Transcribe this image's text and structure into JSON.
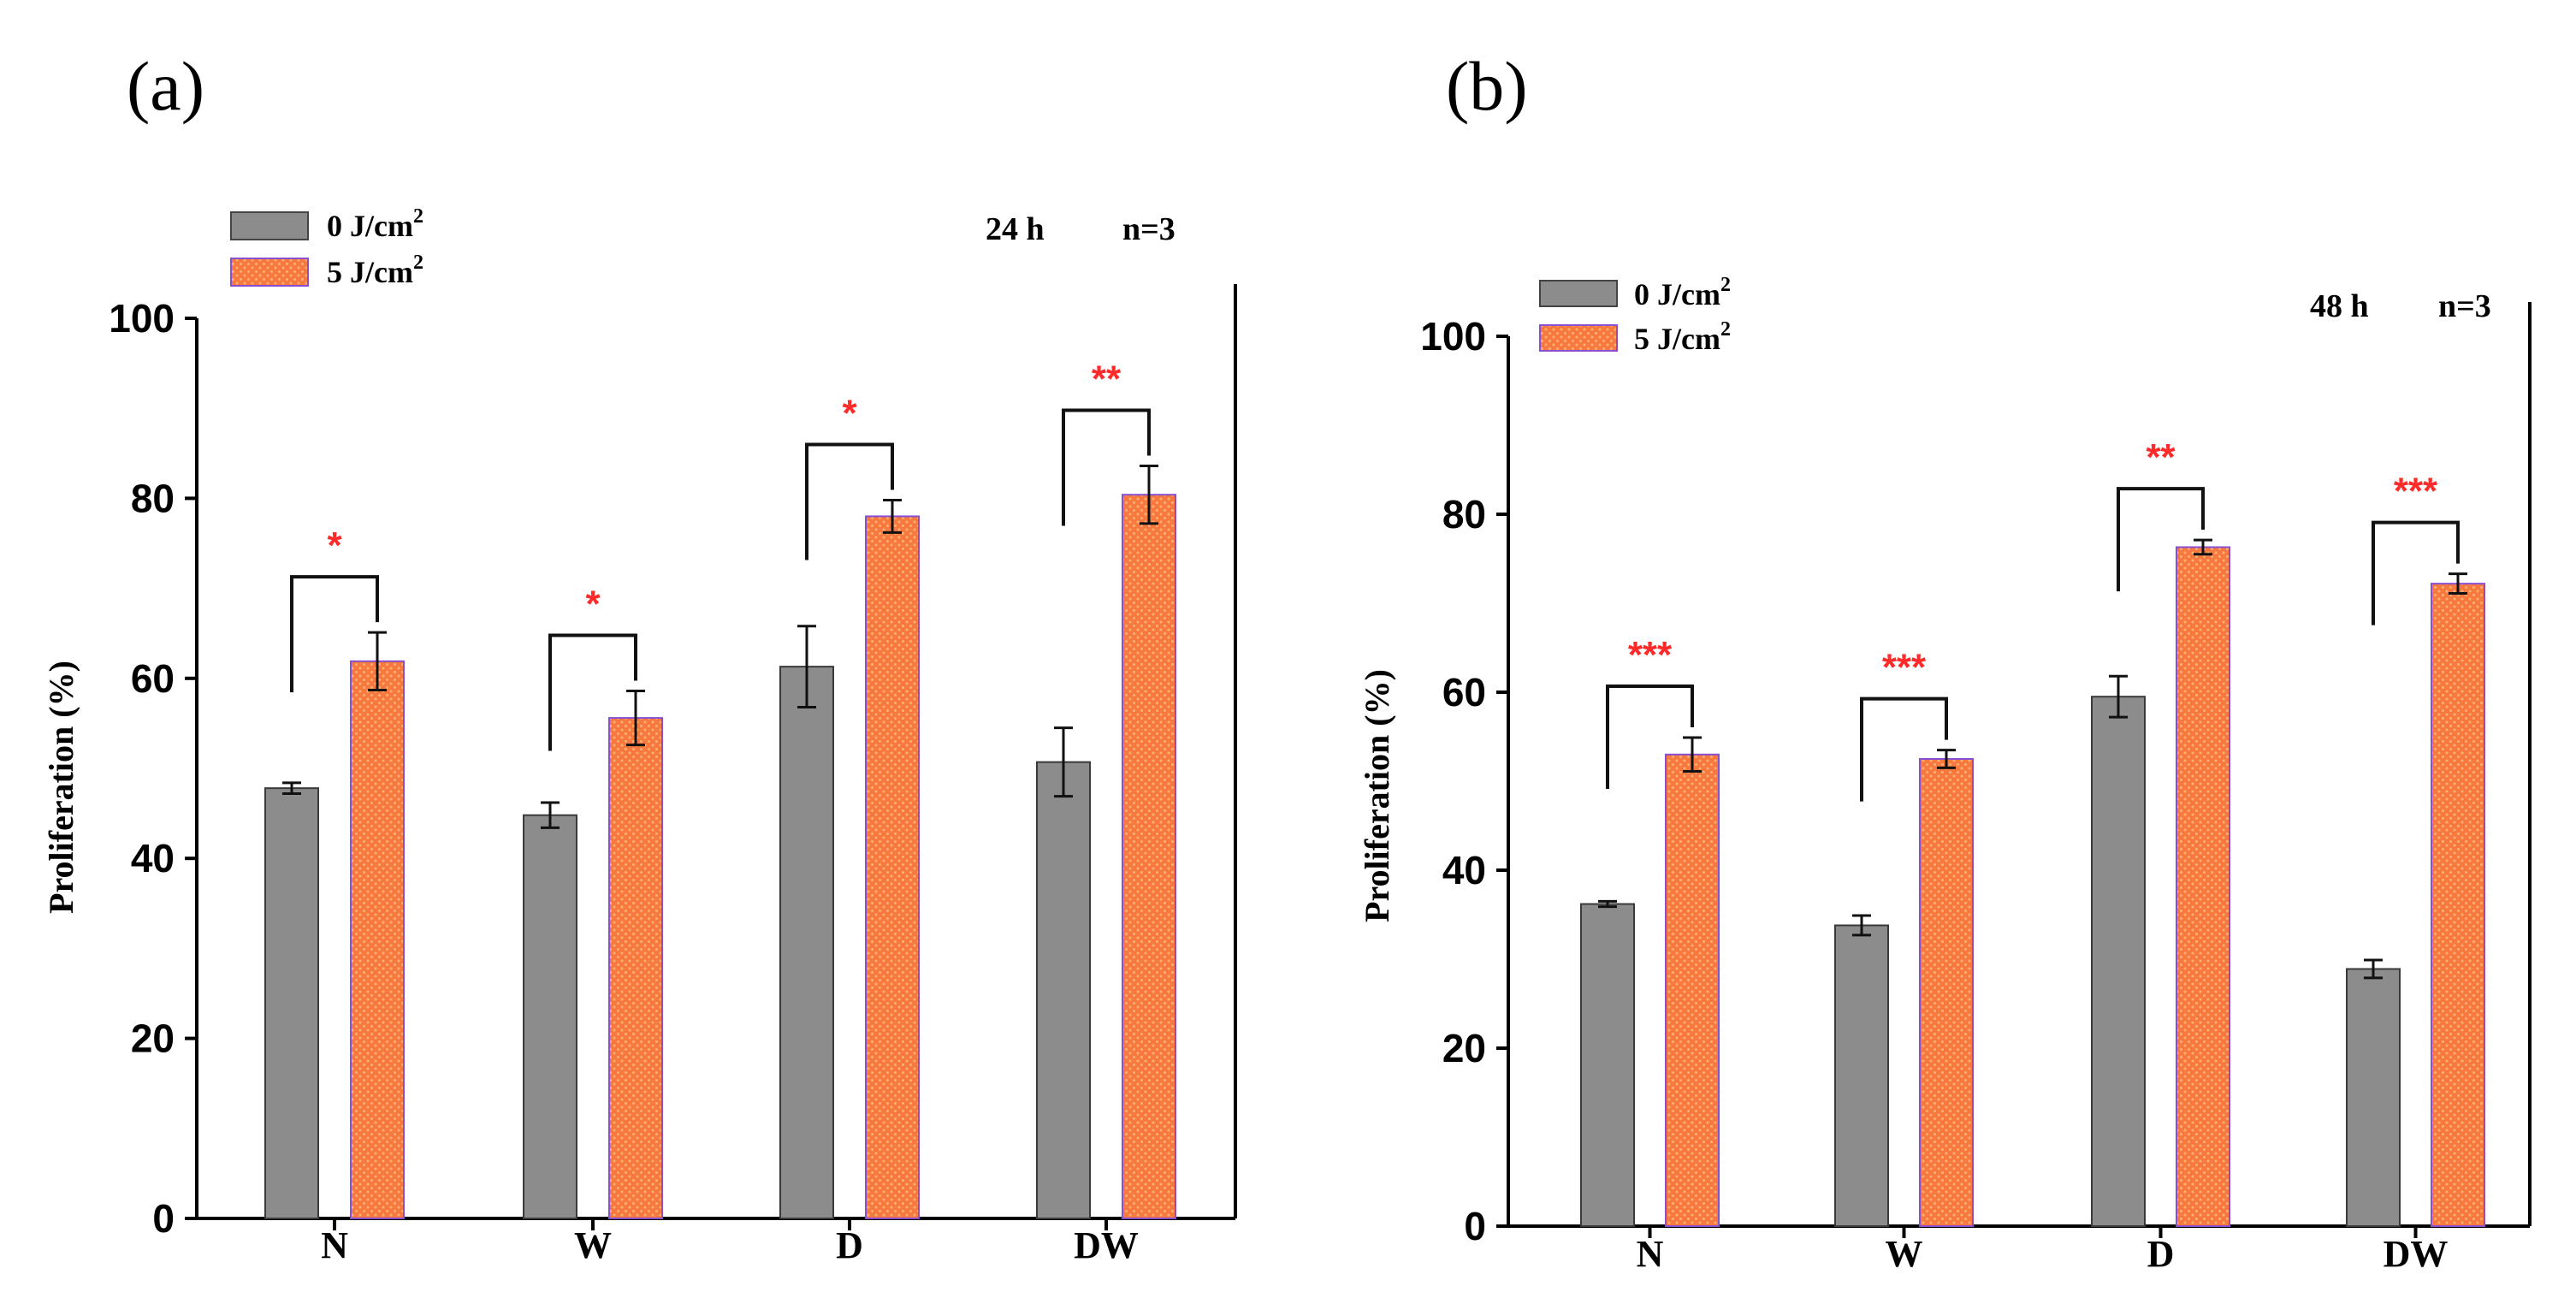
{
  "colors": {
    "control_fill": "#8c8c8c",
    "treated_fill": "#f7793e",
    "treated_dot": "#ffb07a",
    "treated_stroke": "#8a4fd0",
    "significance": "#ff2a2a",
    "axis": "#000000"
  },
  "chart_data": [
    {
      "type": "bar",
      "panel": "(a)",
      "time": "24 h",
      "n": "n=3",
      "ylabel": "Proliferation (%)",
      "xlabel": "",
      "ylim": [
        0,
        100
      ],
      "yticks": [
        "0",
        "20",
        "40",
        "60",
        "80",
        "100"
      ],
      "categories": [
        "N",
        "W",
        "D",
        "DW"
      ],
      "legend_placement": "top-left",
      "series": [
        {
          "name": "0 J/cm",
          "sup": "2",
          "values": [
            47.8,
            44.8,
            61.3,
            50.7
          ],
          "errors": [
            0.6,
            1.4,
            4.5,
            3.8
          ]
        },
        {
          "name": "5 J/cm",
          "sup": "2",
          "values": [
            61.9,
            55.6,
            78.0,
            80.4
          ],
          "errors": [
            3.2,
            3.0,
            1.8,
            3.2
          ]
        }
      ],
      "significance": [
        "*",
        "*",
        "*",
        "**"
      ]
    },
    {
      "type": "bar",
      "panel": "(b)",
      "time": "48 h",
      "n": "n=3",
      "ylabel": "Proliferation (%)",
      "xlabel": "",
      "ylim": [
        0,
        100
      ],
      "yticks": [
        "0",
        "20",
        "40",
        "60",
        "80",
        "100"
      ],
      "categories": [
        "N",
        "W",
        "D",
        "DW"
      ],
      "legend_placement": "top-left",
      "series": [
        {
          "name": "0 J/cm",
          "sup": "2",
          "values": [
            36.2,
            33.8,
            59.5,
            28.9
          ],
          "errors": [
            0.3,
            1.1,
            2.3,
            1.0
          ]
        },
        {
          "name": "5 J/cm",
          "sup": "2",
          "values": [
            53.0,
            52.5,
            76.3,
            72.2
          ],
          "errors": [
            1.9,
            1.0,
            0.8,
            1.1
          ]
        }
      ],
      "significance": [
        "***",
        "***",
        "**",
        "***"
      ]
    }
  ]
}
